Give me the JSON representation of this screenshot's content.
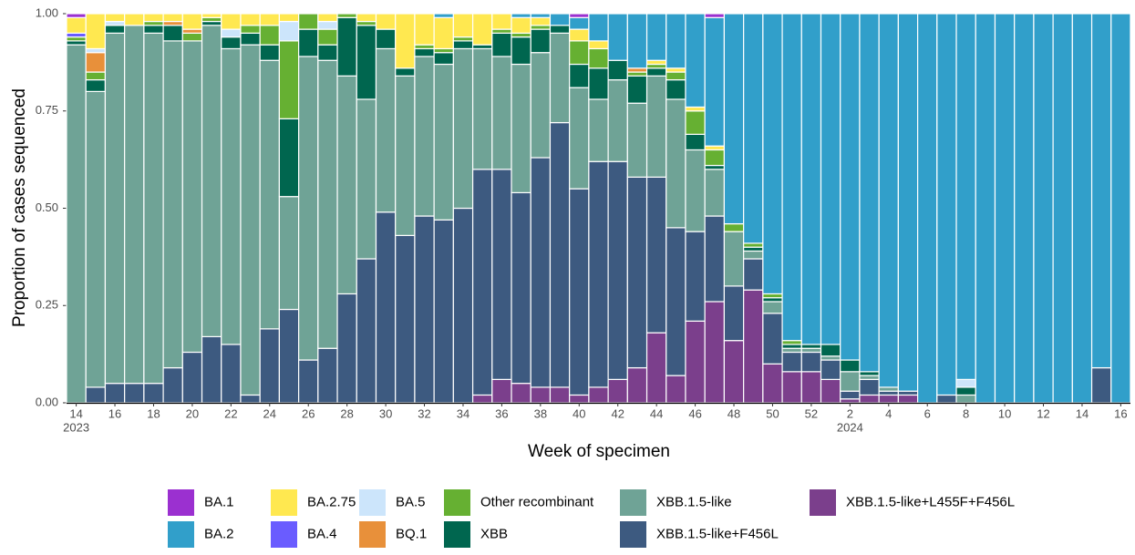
{
  "chart_data": {
    "type": "stacked_bar",
    "x_label": "Week of specimen",
    "y_label": "Proportion of cases sequenced",
    "categories": [
      "14",
      null,
      "16",
      null,
      "18",
      null,
      "20",
      null,
      "22",
      null,
      "24",
      null,
      "26",
      null,
      "28",
      null,
      "30",
      null,
      "32",
      null,
      "34",
      null,
      "36",
      null,
      "38",
      null,
      "40",
      null,
      "42",
      null,
      "44",
      null,
      "46",
      null,
      "48",
      null,
      "50",
      null,
      "52",
      null,
      "2",
      null,
      "4",
      null,
      "6",
      null,
      "8",
      null,
      "10",
      null,
      "12",
      null,
      "14",
      null,
      "16"
    ],
    "year_labels": [
      {
        "index": 0,
        "label": "2023"
      },
      {
        "index": 40,
        "label": "2024"
      }
    ],
    "ylim": [
      0,
      1
    ],
    "yticks": [
      {
        "value": 0,
        "label": "0.00"
      },
      {
        "value": 0.25,
        "label": "0.25"
      },
      {
        "value": 0.5,
        "label": "0.50"
      },
      {
        "value": 0.75,
        "label": "0.75"
      },
      {
        "value": 1,
        "label": "1.00"
      }
    ],
    "grid": false,
    "legend_position": "bottom",
    "series": [
      {
        "name": "BA.1",
        "color": "#9b30d0",
        "values": [
          0.01,
          0,
          0,
          0,
          0,
          0,
          0,
          0,
          0,
          0,
          0,
          0,
          0,
          0,
          0,
          0,
          0,
          0,
          0,
          0,
          0,
          0,
          0,
          0,
          0,
          0,
          0.01,
          0,
          0,
          0,
          0,
          0,
          0,
          0.01,
          0,
          0,
          0,
          0,
          0,
          0,
          0,
          0,
          0,
          0,
          0,
          0,
          0,
          0,
          0,
          0,
          0,
          0,
          0,
          0,
          0
        ]
      },
      {
        "name": "BA.2",
        "color": "#319fca",
        "values": [
          0,
          0,
          0,
          0,
          0,
          0,
          0,
          0,
          0,
          0,
          0,
          0,
          0,
          0,
          0,
          0,
          0,
          0,
          0,
          0.01,
          0,
          0,
          0,
          0.01,
          0.01,
          0.03,
          0.03,
          0.07,
          0.12,
          0.14,
          0.12,
          0.14,
          0.24,
          0.33,
          0.54,
          0.59,
          0.72,
          0.84,
          0.85,
          0.85,
          0.89,
          0.92,
          0.96,
          0.97,
          1,
          0.98,
          0.94,
          1,
          1,
          1,
          1,
          1,
          1,
          0.91,
          1
        ]
      },
      {
        "name": "BA.2.75",
        "color": "#ffe850",
        "values": [
          0.04,
          0.09,
          0.02,
          0.03,
          0.02,
          0.02,
          0.04,
          0.01,
          0.04,
          0.03,
          0.03,
          0.02,
          0,
          0.02,
          0,
          0.02,
          0.04,
          0.14,
          0.08,
          0.08,
          0.06,
          0.08,
          0.04,
          0.04,
          0.02,
          0,
          0.03,
          0.02,
          0,
          0,
          0.01,
          0.01,
          0.01,
          0.01,
          0,
          0,
          0,
          0,
          0,
          0,
          0,
          0,
          0,
          0,
          0,
          0,
          0,
          0,
          0,
          0,
          0,
          0,
          0,
          0,
          0
        ]
      },
      {
        "name": "BA.4",
        "color": "#6a5cff",
        "values": [
          0.01,
          0,
          0,
          0,
          0,
          0,
          0,
          0,
          0,
          0,
          0,
          0,
          0,
          0,
          0,
          0,
          0,
          0,
          0,
          0,
          0,
          0,
          0,
          0,
          0,
          0,
          0,
          0,
          0,
          0,
          0,
          0,
          0,
          0,
          0,
          0,
          0,
          0,
          0,
          0,
          0,
          0,
          0,
          0,
          0,
          0,
          0,
          0,
          0,
          0,
          0,
          0,
          0,
          0,
          0
        ]
      },
      {
        "name": "BA.5",
        "color": "#cce5fb",
        "values": [
          0,
          0.01,
          0.01,
          0,
          0,
          0,
          0,
          0,
          0.02,
          0,
          0,
          0.05,
          0,
          0.02,
          0,
          0,
          0,
          0,
          0,
          0,
          0,
          0,
          0,
          0,
          0,
          0,
          0,
          0,
          0,
          0,
          0,
          0,
          0,
          0,
          0,
          0,
          0,
          0,
          0,
          0,
          0,
          0,
          0,
          0,
          0,
          0,
          0.02,
          0,
          0,
          0,
          0,
          0,
          0,
          0,
          0
        ]
      },
      {
        "name": "BQ.1",
        "color": "#e8903a",
        "values": [
          0,
          0.05,
          0,
          0,
          0,
          0.01,
          0.01,
          0,
          0,
          0,
          0,
          0,
          0,
          0,
          0,
          0,
          0,
          0,
          0,
          0,
          0,
          0,
          0,
          0,
          0,
          0,
          0,
          0,
          0,
          0.01,
          0,
          0,
          0,
          0,
          0,
          0,
          0,
          0,
          0,
          0,
          0,
          0,
          0,
          0,
          0,
          0,
          0,
          0,
          0,
          0,
          0,
          0,
          0,
          0,
          0
        ]
      },
      {
        "name": "Other recombinant",
        "color": "#66b032",
        "values": [
          0.01,
          0.02,
          0,
          0,
          0.01,
          0,
          0.02,
          0.01,
          0,
          0.02,
          0.05,
          0.2,
          0.04,
          0.04,
          0.01,
          0.01,
          0,
          0,
          0.01,
          0.01,
          0.01,
          0,
          0.01,
          0.01,
          0.01,
          0,
          0.06,
          0.05,
          0,
          0.01,
          0.01,
          0.02,
          0.06,
          0.04,
          0.02,
          0.01,
          0.01,
          0.01,
          0,
          0,
          0,
          0,
          0,
          0,
          0,
          0,
          0,
          0,
          0,
          0,
          0,
          0,
          0,
          0,
          0
        ]
      },
      {
        "name": "XBB",
        "color": "#00664f",
        "values": [
          0.01,
          0.03,
          0.02,
          0,
          0.02,
          0.04,
          0,
          0.01,
          0.03,
          0.03,
          0.04,
          0.2,
          0.07,
          0.04,
          0.15,
          0.19,
          0.05,
          0.02,
          0.02,
          0.03,
          0.02,
          0.01,
          0.06,
          0.07,
          0.06,
          0.02,
          0.06,
          0.08,
          0.05,
          0.07,
          0.02,
          0.05,
          0.04,
          0.01,
          0,
          0.01,
          0.01,
          0.01,
          0.01,
          0.03,
          0.03,
          0.01,
          0,
          0,
          0,
          0,
          0.02,
          0,
          0,
          0,
          0,
          0,
          0,
          0,
          0
        ]
      },
      {
        "name": "XBB.1.5-like",
        "color": "#6fa396",
        "values": [
          0.92,
          0.76,
          0.9,
          0.92,
          0.9,
          0.84,
          0.8,
          0.8,
          0.76,
          0.9,
          0.69,
          0.29,
          0.78,
          0.74,
          0.56,
          0.41,
          0.42,
          0.41,
          0.41,
          0.4,
          0.41,
          0.31,
          0.29,
          0.33,
          0.27,
          0.23,
          0.26,
          0.16,
          0.21,
          0.19,
          0.26,
          0.33,
          0.21,
          0.12,
          0.14,
          0.02,
          0.03,
          0.01,
          0.01,
          0.01,
          0.05,
          0.01,
          0.01,
          0,
          0,
          0,
          0.02,
          0,
          0,
          0,
          0,
          0,
          0,
          0,
          0
        ]
      },
      {
        "name": "XBB.1.5-like+F456L",
        "color": "#3d5a80",
        "values": [
          0,
          0.04,
          0.05,
          0.05,
          0.05,
          0.09,
          0.13,
          0.17,
          0.15,
          0.02,
          0.19,
          0.24,
          0.11,
          0.14,
          0.28,
          0.37,
          0.49,
          0.43,
          0.48,
          0.47,
          0.5,
          0.58,
          0.54,
          0.49,
          0.59,
          0.68,
          0.53,
          0.58,
          0.56,
          0.49,
          0.4,
          0.38,
          0.23,
          0.22,
          0.14,
          0.08,
          0.13,
          0.05,
          0.05,
          0.05,
          0.02,
          0.04,
          0.01,
          0.01,
          0,
          0.02,
          0,
          0,
          0,
          0,
          0,
          0,
          0,
          0.09,
          0
        ]
      },
      {
        "name": "XBB.1.5-like+L455F+F456L",
        "color": "#7b3f8c",
        "values": [
          0,
          0,
          0,
          0,
          0,
          0,
          0,
          0,
          0,
          0,
          0,
          0,
          0,
          0,
          0,
          0,
          0,
          0,
          0,
          0,
          0,
          0.02,
          0.06,
          0.05,
          0.04,
          0.04,
          0.02,
          0.04,
          0.06,
          0.09,
          0.18,
          0.07,
          0.21,
          0.26,
          0.16,
          0.29,
          0.1,
          0.08,
          0.08,
          0.06,
          0.01,
          0.02,
          0.02,
          0.02,
          0,
          0,
          0,
          0,
          0,
          0,
          0,
          0,
          0,
          0,
          0
        ]
      }
    ]
  }
}
